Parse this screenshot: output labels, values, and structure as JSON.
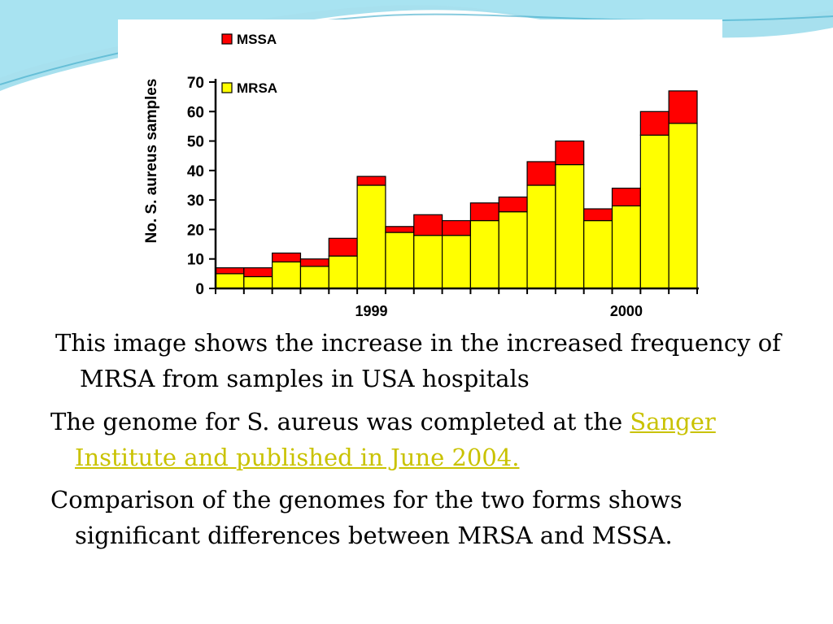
{
  "theme": {
    "link_color": "#c9c200",
    "wave_color": "#5fc6e0"
  },
  "chart_data": {
    "type": "bar",
    "stacked": true,
    "ylabel": "No. S. aureus samples",
    "xlabel": "",
    "ylim": [
      0,
      70
    ],
    "yticks": [
      0,
      10,
      20,
      30,
      40,
      50,
      60,
      70
    ],
    "x_tick_labels": [
      {
        "label": "1999",
        "bar_index": 5
      },
      {
        "label": "2000",
        "bar_index": 14
      }
    ],
    "legend": {
      "placement": "top-left",
      "entries": [
        "MSSA",
        "MRSA"
      ]
    },
    "grid": false,
    "series": [
      {
        "name": "MRSA",
        "color": "#ffff00",
        "values": [
          5,
          4,
          9,
          7.5,
          11,
          35,
          19,
          18,
          18,
          23,
          26,
          35,
          42,
          23,
          28,
          52,
          56
        ]
      },
      {
        "name": "MSSA",
        "color": "#ff0000",
        "values": [
          2,
          3,
          3,
          2.5,
          6,
          3,
          2,
          7,
          5,
          6,
          5,
          8,
          8,
          4,
          6,
          8,
          11
        ]
      }
    ]
  },
  "text": {
    "para1": "This image shows the increase in the increased frequency of MRSA from samples in USA hospitals",
    "para2_prefix": "The genome for S. aureus was completed at the ",
    "para2_link": "Sanger Institute and published in June 2004.",
    "para3": "Comparison of the genomes for the two forms shows significant differences between MRSA and MSSA."
  }
}
